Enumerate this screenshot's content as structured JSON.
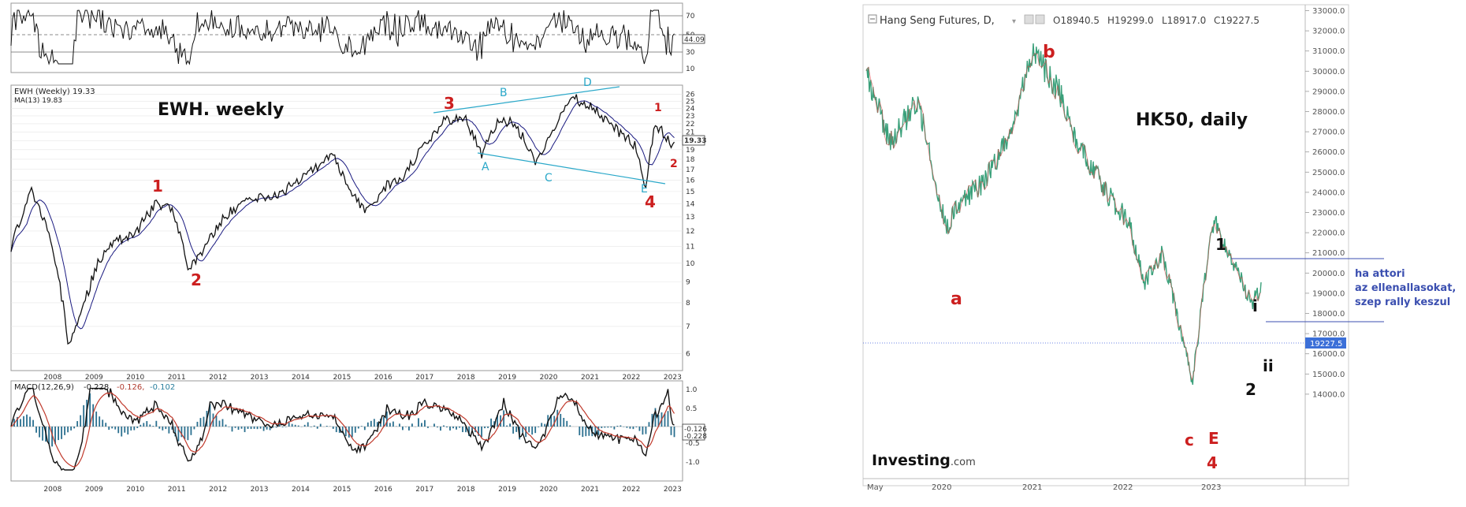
{
  "left": {
    "rsi": {
      "ticks": [
        "70",
        "50",
        "30",
        "10"
      ],
      "last": "44.09"
    },
    "price": {
      "legend_title": "EWH (Weekly) 19.33",
      "legend_ma": "MA(13) 19.83",
      "title": "EWH. weekly",
      "last": "19.33",
      "y_ticks": [
        "26",
        "25",
        "24",
        "23",
        "22",
        "21",
        "20",
        "19",
        "18",
        "17",
        "16",
        "15",
        "14",
        "13",
        "12",
        "11",
        "10",
        "9",
        "8",
        "7",
        "6"
      ],
      "x_labels": [
        "2008",
        "2009",
        "2010",
        "2011",
        "2012",
        "2013",
        "2014",
        "2015",
        "2016",
        "2017",
        "2018",
        "2019",
        "2020",
        "2021",
        "2022",
        "2023"
      ],
      "wave_labels": [
        {
          "t": "1",
          "c": "red",
          "size": "big"
        },
        {
          "t": "2",
          "c": "red",
          "size": "big"
        },
        {
          "t": "3",
          "c": "red",
          "size": "big"
        },
        {
          "t": "4",
          "c": "red",
          "size": "big"
        },
        {
          "t": "1",
          "c": "red",
          "size": "small"
        },
        {
          "t": "2",
          "c": "red",
          "size": "small"
        },
        {
          "t": "A",
          "c": "blue",
          "size": "small"
        },
        {
          "t": "B",
          "c": "blue",
          "size": "small"
        },
        {
          "t": "C",
          "c": "blue",
          "size": "small"
        },
        {
          "t": "D",
          "c": "blue",
          "size": "small"
        },
        {
          "t": "E",
          "c": "blue",
          "size": "small"
        }
      ]
    },
    "macd": {
      "legend_a": "MACD(12,26,9)",
      "legend_b": "-0.228,",
      "legend_c": "-0.126,",
      "legend_d": "-0.102",
      "ticks": [
        "1.0",
        "0.5",
        "0.0",
        "-0.5",
        "-1.0"
      ],
      "last1": "-0.126",
      "last2": "-0.228"
    }
  },
  "right": {
    "header": {
      "title": "Hang Seng Futures, D,",
      "o": "O18940.5",
      "h": "H19299.0",
      "l": "L18917.0",
      "c": "C19227.5"
    },
    "chart_title": "HK50, daily",
    "y_ticks": [
      "33000.0",
      "32000.0",
      "31000.0",
      "30000.0",
      "29000.0",
      "28000.0",
      "27000.0",
      "26000.0",
      "25000.0",
      "24000.0",
      "23000.0",
      "22000.0",
      "21000.0",
      "20000.0",
      "19000.0",
      "18000.0",
      "17000.0",
      "16000.0",
      "15000.0",
      "14000.0"
    ],
    "current_price": "19227.5",
    "x_labels": [
      "May",
      "2020",
      "2021",
      "2022",
      "2023"
    ],
    "wave_labels": [
      "a",
      "b",
      "c",
      "E",
      "4",
      "1",
      "i",
      "ii",
      "2"
    ],
    "note": [
      "ha attori",
      "az ellenallasokat,",
      "szep rally keszul"
    ],
    "logo": "Investing",
    "logo_suffix": ".com"
  },
  "chart_data": [
    {
      "type": "line",
      "title": "EWH. weekly",
      "x": [
        2007.5,
        2008.0,
        2008.5,
        2008.9,
        2009.2,
        2009.6,
        2010.0,
        2010.5,
        2011.0,
        2011.4,
        2011.8,
        2012.2,
        2012.8,
        2013.3,
        2014.0,
        2014.6,
        2015.3,
        2015.7,
        2016.1,
        2016.6,
        2017.0,
        2017.5,
        2018.0,
        2018.5,
        2018.9,
        2019.3,
        2019.7,
        2020.2,
        2020.6,
        2021.1,
        2021.6,
        2022.1,
        2022.6,
        2022.85,
        2023.1,
        2023.55
      ],
      "y": [
        11,
        15,
        11,
        6.2,
        7.5,
        10,
        11.3,
        11.8,
        14,
        13.5,
        9.5,
        11,
        13.5,
        14.3,
        14.8,
        16.2,
        18.5,
        15,
        13.5,
        15.5,
        16.2,
        19.5,
        22.5,
        22.5,
        18.5,
        22.5,
        22,
        17.5,
        21,
        25.5,
        24,
        21.5,
        19.5,
        15.5,
        22,
        19.33
      ],
      "ylim": [
        5.5,
        27
      ],
      "ylog": true,
      "series": [
        {
          "name": "EWH (Weekly)",
          "values": [
            11,
            15,
            11,
            6.2,
            7.5,
            10,
            11.3,
            11.8,
            14,
            13.5,
            9.5,
            11,
            13.5,
            14.3,
            14.8,
            16.2,
            18.5,
            15,
            13.5,
            15.5,
            16.2,
            19.5,
            22.5,
            22.5,
            18.5,
            22.5,
            22,
            17.5,
            21,
            25.5,
            24,
            21.5,
            19.5,
            15.5,
            22,
            19.33
          ]
        }
      ],
      "ma_label": "MA(13) 19.83",
      "rsi_last": 44.09,
      "macd": {
        "macd": -0.228,
        "signal": -0.126,
        "hist": -0.102
      }
    },
    {
      "type": "line",
      "title": "HK50, daily",
      "x": [
        2019.35,
        2019.6,
        2019.9,
        2020.2,
        2020.35,
        2020.6,
        2020.9,
        2021.12,
        2021.4,
        2021.6,
        2021.9,
        2022.15,
        2022.3,
        2022.5,
        2022.68,
        2022.82,
        2022.95,
        2023.05,
        2023.3,
        2023.45,
        2023.55
      ],
      "y": [
        30000,
        26500,
        28500,
        22200,
        23500,
        24500,
        27000,
        31000,
        29000,
        26500,
        24000,
        22500,
        19500,
        21000,
        17500,
        14600,
        19500,
        22700,
        20000,
        18500,
        19227.5
      ],
      "ylim": [
        13500,
        33500
      ],
      "series": [
        {
          "name": "Hang Seng Futures",
          "values": [
            30000,
            26500,
            28500,
            22200,
            23500,
            24500,
            27000,
            31000,
            29000,
            26500,
            24000,
            22500,
            19500,
            21000,
            17500,
            14600,
            19500,
            22700,
            20000,
            18500,
            19227.5
          ]
        }
      ],
      "ohlc": {
        "o": 18940.5,
        "h": 19299.0,
        "l": 18917.0,
        "c": 19227.5
      },
      "lines": [
        22700,
        20100
      ]
    }
  ]
}
